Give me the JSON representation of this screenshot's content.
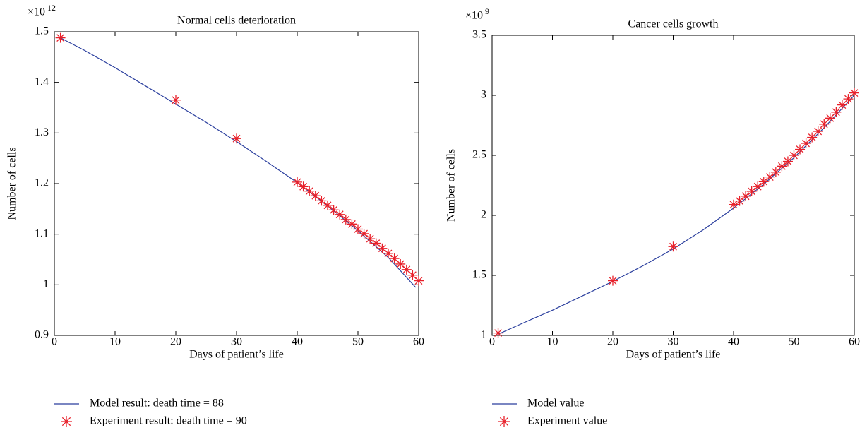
{
  "chart_data": [
    {
      "type": "line",
      "title": "Normal cells deterioration",
      "x_label": "Days of patient’s life",
      "y_label": "Number of cells",
      "y_multiplier": "×10",
      "y_multiplier_exponent": "12",
      "xlim": [
        0,
        60
      ],
      "xticks": [
        0,
        10,
        20,
        30,
        40,
        50,
        60
      ],
      "ylim": [
        0.9,
        1.5
      ],
      "yticks": [
        0.9,
        1,
        1.1,
        1.2,
        1.3,
        1.4,
        1.5
      ],
      "grid": false,
      "box": true,
      "legend": "below",
      "series": [
        {
          "name": "Model result: death time = 88",
          "color": "#2b3f9e",
          "marker": "none",
          "x": [
            1,
            5,
            10,
            15,
            20,
            25,
            30,
            35,
            40,
            45,
            50,
            55,
            59.5
          ],
          "values": [
            1.488,
            1.463,
            1.429,
            1.393,
            1.357,
            1.321,
            1.283,
            1.243,
            1.202,
            1.156,
            1.107,
            1.054,
            0.995
          ]
        },
        {
          "name": "Experiment result: death time = 90",
          "color": "#e8202a",
          "marker": "asterisk",
          "x": [
            1,
            20,
            30,
            40,
            41,
            42,
            43,
            44,
            45,
            46,
            47,
            48,
            49,
            50,
            51,
            52,
            53,
            54,
            55,
            56,
            57,
            58,
            59,
            60
          ],
          "values": [
            1.488,
            1.365,
            1.289,
            1.203,
            1.194,
            1.185,
            1.176,
            1.166,
            1.157,
            1.148,
            1.139,
            1.129,
            1.12,
            1.11,
            1.101,
            1.091,
            1.082,
            1.072,
            1.062,
            1.052,
            1.041,
            1.03,
            1.019,
            1.008
          ]
        }
      ]
    },
    {
      "type": "line",
      "title": "Cancer cells growth",
      "x_label": "Days of patient’s life",
      "y_label": "Number of cells",
      "y_multiplier": "×10",
      "y_multiplier_exponent": "9",
      "xlim": [
        0,
        60
      ],
      "xticks": [
        0,
        10,
        20,
        30,
        40,
        50,
        60
      ],
      "ylim": [
        1,
        3.5
      ],
      "yticks": [
        1,
        1.5,
        2,
        2.5,
        3,
        3.5
      ],
      "grid": false,
      "box": true,
      "legend": "below",
      "series": [
        {
          "name": "Model value",
          "color": "#2b3f9e",
          "marker": "none",
          "x": [
            1,
            5,
            10,
            15,
            20,
            25,
            30,
            35,
            40,
            45,
            50,
            55,
            60
          ],
          "values": [
            1.01,
            1.1,
            1.21,
            1.33,
            1.45,
            1.58,
            1.72,
            1.88,
            2.06,
            2.26,
            2.48,
            2.73,
            3.0
          ]
        },
        {
          "name": "Experiment value",
          "color": "#e8202a",
          "marker": "asterisk",
          "x": [
            1,
            20,
            30,
            40,
            41,
            42,
            43,
            44,
            45,
            46,
            47,
            48,
            49,
            50,
            51,
            52,
            53,
            54,
            55,
            56,
            57,
            58,
            59,
            60
          ],
          "values": [
            1.02,
            1.455,
            1.74,
            2.09,
            2.12,
            2.16,
            2.2,
            2.24,
            2.28,
            2.32,
            2.36,
            2.41,
            2.45,
            2.5,
            2.55,
            2.6,
            2.65,
            2.7,
            2.76,
            2.81,
            2.86,
            2.92,
            2.97,
            3.02
          ]
        }
      ]
    }
  ]
}
